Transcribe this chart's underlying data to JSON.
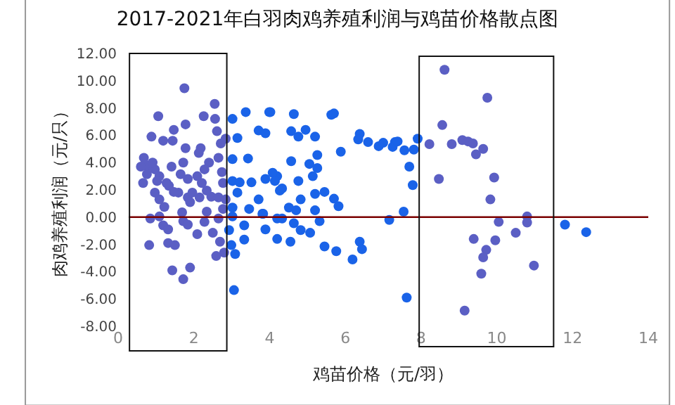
{
  "chart_data": {
    "type": "scatter",
    "title": "2017-2021年白羽肉鸡养殖利润与鸡苗价格散点图",
    "xlabel": "鸡苗价格（元/羽）",
    "ylabel": "肉鸡养殖利润（元/只）",
    "xlim": [
      0,
      14
    ],
    "xticks": [
      0,
      2,
      4,
      6,
      8,
      10,
      12,
      14
    ],
    "ylim": [
      -8,
      12
    ],
    "yticks": [
      {
        "value": 12,
        "label": "12.00"
      },
      {
        "value": 10,
        "label": "10.00"
      },
      {
        "value": 8,
        "label": "8.00"
      },
      {
        "value": 6,
        "label": "6.00"
      },
      {
        "value": 4,
        "label": "4.00"
      },
      {
        "value": 2,
        "label": "2.00"
      },
      {
        "value": 0,
        "label": "0.00"
      },
      {
        "value": -2,
        "label": "-2.00"
      },
      {
        "value": -4,
        "label": "-4.00"
      },
      {
        "value": -6,
        "label": "-6.00"
      },
      {
        "value": -8,
        "label": "-8.00"
      }
    ],
    "marker": "circle",
    "ref_lines": [
      {
        "axis": "y",
        "value": 0,
        "color": "#7a0000"
      }
    ],
    "series": [
      {
        "color": "#5b5fc4",
        "x": [
          1.75,
          2.55,
          1.06,
          2.26,
          1.78,
          2.56,
          1.47,
          0.88,
          1.19,
          1.44,
          2.61,
          2.18,
          1.78,
          2.84,
          0.68,
          0.78,
          0.97,
          0.76,
          1.09,
          1.72,
          2.13,
          2.4,
          2.65,
          2.74,
          1.84,
          2.21,
          1.34,
          0.66,
          1.59,
          1.84,
          2.15,
          2.46,
          1.09,
          2.65,
          1.22,
          2.84,
          1.69,
          0.85,
          1.09,
          1.72,
          2.28,
          1.84,
          2.65,
          1.19,
          1.32,
          2.09,
          2.5,
          2.69,
          0.82,
          1.32,
          1.5,
          2.8,
          2.59,
          1.43,
          1.9,
          1.72,
          0.72,
          0.91,
          1.03,
          1.28,
          1.47,
          1.96,
          2.34,
          2.09,
          2.28,
          1.65,
          1.41,
          0.6,
          2.71,
          2.77,
          2.77,
          2.34,
          1.9,
          0.97,
          8.62,
          9.75,
          8.56,
          8.22,
          8.81,
          9.09,
          9.24,
          9.37,
          9.64,
          9.45,
          8.47,
          9.93,
          9.83,
          10.8,
          10.05,
          10.8,
          10.5,
          9.39,
          9.96,
          9.72,
          9.64,
          10.98,
          9.59,
          9.15
        ],
        "values": [
          9.45,
          8.3,
          7.4,
          7.4,
          6.8,
          7.2,
          6.4,
          5.9,
          5.6,
          5.6,
          6.3,
          5.05,
          5.05,
          5.75,
          4.35,
          3.7,
          3.5,
          3.15,
          3.0,
          4.0,
          4.7,
          4.0,
          4.35,
          3.3,
          2.8,
          2.5,
          2.3,
          2.5,
          1.8,
          1.45,
          1.45,
          1.5,
          1.3,
          1.45,
          0.75,
          1.3,
          0.35,
          -0.1,
          0.05,
          -0.3,
          -0.35,
          -0.55,
          -0.1,
          -0.6,
          -0.9,
          -1.25,
          -1.15,
          -1.8,
          -2.05,
          -1.9,
          -2.05,
          -2.6,
          -2.85,
          -3.9,
          -3.7,
          -4.55,
          3.85,
          4.0,
          2.65,
          2.5,
          1.85,
          1.8,
          1.95,
          3.0,
          3.5,
          3.15,
          3.7,
          3.7,
          5.4,
          2.5,
          0.6,
          0.4,
          1.1,
          1.8,
          10.8,
          8.75,
          6.75,
          5.35,
          5.35,
          5.65,
          5.55,
          5.4,
          5.0,
          4.6,
          2.8,
          2.9,
          1.3,
          0.05,
          -0.35,
          -0.4,
          -1.15,
          -1.6,
          -1.7,
          -2.4,
          -2.95,
          -3.55,
          -4.15,
          -6.85
        ]
      },
      {
        "color": "#1a63e8",
        "x": [
          3.37,
          3.99,
          3.02,
          3.71,
          3.89,
          3.15,
          3.02,
          3.43,
          3.02,
          3.21,
          3.52,
          3.89,
          4.2,
          3.15,
          3.71,
          3.02,
          3.46,
          3.81,
          3.02,
          4.2,
          3.33,
          2.93,
          3.89,
          4.2,
          3.33,
          2.99,
          3.09,
          3.06,
          4.02,
          4.64,
          5.63,
          5.7,
          4.57,
          4.76,
          4.95,
          5.2,
          6.38,
          6.34,
          6.6,
          6.88,
          7.0,
          7.31,
          7.25,
          7.56,
          7.81,
          7.91,
          5.88,
          5.26,
          5.05,
          5.26,
          4.57,
          7.69,
          7.78,
          4.08,
          4.14,
          4.76,
          5.14,
          4.33,
          4.27,
          4.82,
          5.2,
          5.45,
          5.7,
          5.82,
          4.51,
          4.7,
          5.2,
          3.83,
          4.33,
          4.64,
          5.32,
          7.16,
          7.54,
          4.82,
          5.07,
          4.55,
          5.45,
          5.76,
          6.38,
          6.44,
          6.19,
          7.62,
          7.38,
          11.8,
          12.36
        ],
        "values": [
          7.7,
          7.7,
          7.2,
          6.35,
          6.15,
          5.8,
          4.25,
          4.3,
          2.65,
          2.55,
          2.55,
          2.8,
          3.0,
          1.8,
          1.3,
          0.7,
          0.6,
          0.25,
          0.05,
          -0.1,
          -0.6,
          -0.95,
          -0.9,
          -1.6,
          -1.65,
          -2.05,
          -2.7,
          -5.35,
          7.7,
          7.55,
          7.5,
          7.6,
          6.3,
          5.9,
          6.4,
          5.9,
          6.1,
          5.7,
          5.5,
          5.2,
          5.45,
          5.5,
          5.15,
          4.9,
          4.95,
          5.75,
          4.8,
          4.55,
          3.9,
          3.6,
          4.1,
          3.7,
          2.35,
          3.25,
          2.65,
          2.65,
          3.0,
          2.1,
          1.95,
          1.3,
          1.7,
          1.85,
          1.35,
          0.8,
          0.7,
          0.5,
          0.5,
          0.25,
          -0.1,
          -0.45,
          -0.3,
          -0.2,
          0.4,
          -0.95,
          -1.15,
          -1.8,
          -2.15,
          -2.5,
          -1.8,
          -2.35,
          -3.1,
          -5.9,
          5.55,
          -0.55,
          -1.1
        ]
      }
    ]
  }
}
